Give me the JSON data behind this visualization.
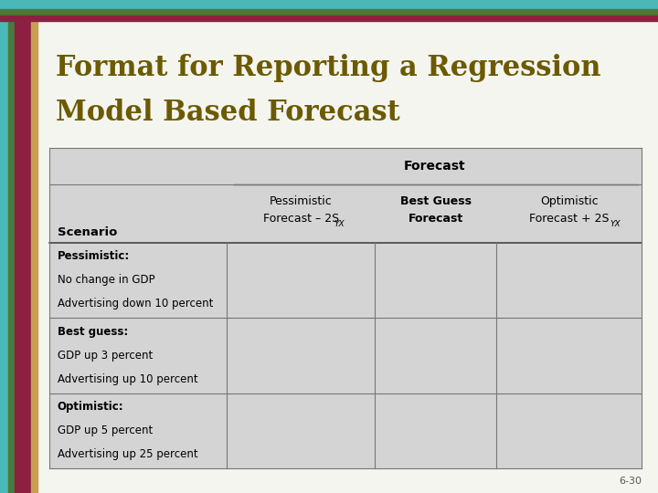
{
  "title_line1": "Format for Reporting a Regression",
  "title_line2": "Model Based Forecast",
  "title_color": "#6b5a00",
  "slide_bg": "#f5f5f0",
  "table_bg": "#d4d4d4",
  "accent_colors": {
    "teal": "#4ab8b8",
    "green": "#4a7a3a",
    "maroon": "#8b2040",
    "tan": "#c8a050"
  },
  "slide_number": "6-30",
  "forecast_header": "Forecast",
  "rows": [
    [
      "Pessimistic:",
      "No change in GDP",
      "Advertising down 10 percent"
    ],
    [
      "Best guess:",
      "GDP up 3 percent",
      "Advertising up 10 percent"
    ],
    [
      "Optimistic:",
      "GDP up 5 percent",
      "Advertising up 25 percent"
    ]
  ],
  "table_font_size": 8.5,
  "header_font_size": 9,
  "title_font_size": 22
}
